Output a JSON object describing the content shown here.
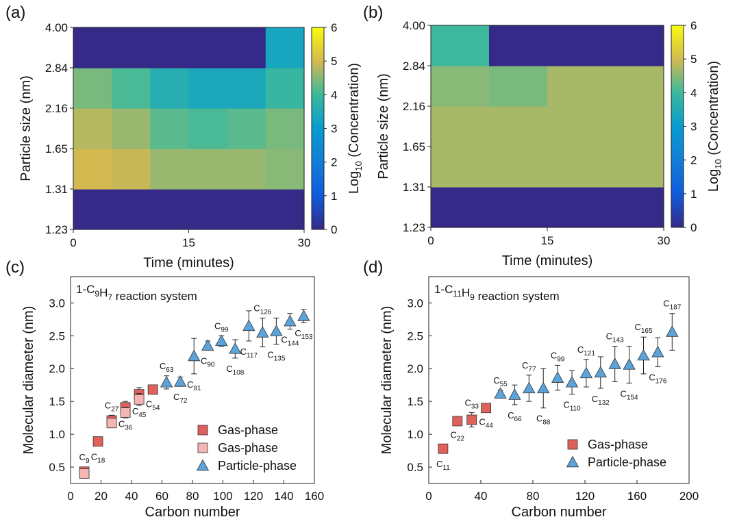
{
  "figure": {
    "panels": [
      "(a)",
      "(b)",
      "(c)",
      "(d)"
    ]
  },
  "chart_data": [
    {
      "panel": "(a)",
      "type": "heatmap",
      "xlabel": "Time (minutes)",
      "ylabel": "Particle size (nm)",
      "colorbar_label": "Log10 (Concentration)",
      "colorbar_ticks": [
        0,
        1,
        2,
        3,
        4,
        5,
        6
      ],
      "colorbar_range": [
        0,
        6
      ],
      "colormap": "parula",
      "x_ticks": [
        "0",
        "15",
        "30"
      ],
      "x_range": [
        0,
        30
      ],
      "y_ticks": [
        "1.23",
        "1.31",
        "1.65",
        "2.16",
        "2.84",
        "4.00"
      ],
      "time_bins": [
        0,
        5,
        10,
        15,
        20,
        25,
        30
      ],
      "size_bins": [
        1.23,
        1.31,
        1.65,
        2.16,
        2.84,
        4.0
      ],
      "values": [
        [
          0.0,
          0.0,
          0.0,
          0.0,
          0.0,
          0.0
        ],
        [
          5.0,
          4.9,
          4.6,
          4.6,
          4.6,
          4.5
        ],
        [
          4.8,
          4.6,
          4.2,
          4.1,
          4.2,
          4.4
        ],
        [
          4.4,
          4.1,
          3.6,
          3.4,
          3.4,
          3.9
        ],
        [
          0.0,
          0.0,
          0.0,
          0.0,
          0.0,
          3.3
        ]
      ]
    },
    {
      "panel": "(b)",
      "type": "heatmap",
      "xlabel": "Time (minutes)",
      "ylabel": "Particle size (nm)",
      "colorbar_label": "Log10 (Concentration)",
      "colorbar_ticks": [
        0,
        1,
        2,
        3,
        4,
        5,
        6
      ],
      "colorbar_range": [
        0,
        6
      ],
      "colormap": "parula",
      "x_ticks": [
        "0",
        "15",
        "30"
      ],
      "x_range": [
        0,
        30
      ],
      "y_ticks": [
        "1.23",
        "1.31",
        "1.65",
        "2.16",
        "2.84",
        "4.00"
      ],
      "time_bins": [
        0,
        7.5,
        15,
        22.5,
        30
      ],
      "size_bins": [
        1.23,
        1.31,
        1.65,
        2.16,
        2.84,
        4.0
      ],
      "values": [
        [
          0.0,
          0.0,
          0.0,
          0.0
        ],
        [
          4.7,
          4.7,
          4.7,
          4.7
        ],
        [
          4.7,
          4.7,
          4.7,
          4.7
        ],
        [
          4.5,
          4.4,
          4.7,
          4.7
        ],
        [
          4.0,
          0.0,
          0.0,
          0.0
        ]
      ]
    },
    {
      "panel": "(c)",
      "type": "scatter",
      "annotation": "1-C9H7 reaction system",
      "xlabel": "Carbon number",
      "ylabel": "Molecular diameter (nm)",
      "xlim": [
        0,
        160
      ],
      "ylim": [
        0.25,
        3.4
      ],
      "x_ticks": [
        0,
        20,
        40,
        60,
        80,
        100,
        120,
        140,
        160
      ],
      "y_ticks": [
        0.5,
        1.0,
        1.5,
        2.0,
        2.5,
        3.0
      ],
      "legend_position": "bottom-right",
      "series": [
        {
          "name": "Gas-phase",
          "marker": "square",
          "color": "#e0605c",
          "points": [
            {
              "x": 9,
              "y": 0.43,
              "err": 0.07,
              "label": "C",
              "sub": "9"
            },
            {
              "x": 18,
              "y": 0.89,
              "err": 0.07,
              "label": "C",
              "sub": "18"
            },
            {
              "x": 27,
              "y": 1.21,
              "err": 0.08,
              "label": "C",
              "sub": "27"
            },
            {
              "x": 36,
              "y": 1.41,
              "err": 0.09,
              "label": "C",
              "sub": "36"
            },
            {
              "x": 45,
              "y": 1.61,
              "err": 0.1,
              "label": "C",
              "sub": "45"
            },
            {
              "x": 54,
              "y": 1.68,
              "err": 0.06,
              "label": "C",
              "sub": "54"
            }
          ]
        },
        {
          "name": "Gas-phase",
          "marker": "square",
          "color": "#f4b6b2",
          "points": [
            {
              "x": 9,
              "y": 0.4,
              "err": 0.05
            },
            {
              "x": 27,
              "y": 1.17,
              "err": 0.06
            },
            {
              "x": 36,
              "y": 1.33,
              "err": 0.08
            },
            {
              "x": 45,
              "y": 1.53,
              "err": 0.09
            }
          ]
        },
        {
          "name": "Particle-phase",
          "marker": "triangle",
          "color": "#5ba3d8",
          "points": [
            {
              "x": 63,
              "y": 1.79,
              "err": 0.1,
              "label": "C",
              "sub": "63"
            },
            {
              "x": 72,
              "y": 1.8,
              "err": 0.07,
              "label": "C",
              "sub": "72"
            },
            {
              "x": 81,
              "y": 2.19,
              "err": 0.27,
              "label": "C",
              "sub": "81"
            },
            {
              "x": 90,
              "y": 2.35,
              "err": 0.07,
              "label": "C",
              "sub": "90"
            },
            {
              "x": 99,
              "y": 2.42,
              "err": 0.08,
              "label": "C",
              "sub": "99"
            },
            {
              "x": 108,
              "y": 2.3,
              "err": 0.14,
              "label": "C",
              "sub": "108"
            },
            {
              "x": 117,
              "y": 2.65,
              "err": 0.23,
              "label": "C",
              "sub": "117"
            },
            {
              "x": 126,
              "y": 2.55,
              "err": 0.22,
              "label": "C",
              "sub": "126"
            },
            {
              "x": 135,
              "y": 2.57,
              "err": 0.2,
              "label": "C",
              "sub": "135"
            },
            {
              "x": 144,
              "y": 2.72,
              "err": 0.12,
              "label": "C",
              "sub": "144"
            },
            {
              "x": 153,
              "y": 2.8,
              "err": 0.1,
              "label": "C",
              "sub": "153"
            }
          ]
        }
      ]
    },
    {
      "panel": "(d)",
      "type": "scatter",
      "annotation": "1-C11H9 reaction system",
      "xlabel": "Carbon number",
      "ylabel": "Molecular diameter (nm)",
      "xlim": [
        0,
        200
      ],
      "ylim": [
        0.25,
        3.4
      ],
      "x_ticks": [
        0,
        40,
        80,
        120,
        160,
        200
      ],
      "y_ticks": [
        0.5,
        1.0,
        1.5,
        2.0,
        2.5,
        3.0
      ],
      "legend_position": "bottom-right",
      "series": [
        {
          "name": "Gas-phase",
          "marker": "square",
          "color": "#e0605c",
          "points": [
            {
              "x": 11,
              "y": 0.78,
              "err": 0.07,
              "label": "C",
              "sub": "11"
            },
            {
              "x": 22,
              "y": 1.2,
              "err": 0.05,
              "label": "C",
              "sub": "22"
            },
            {
              "x": 33,
              "y": 1.22,
              "err": 0.11,
              "label": "C",
              "sub": "33"
            },
            {
              "x": 44,
              "y": 1.4,
              "err": 0.05,
              "label": "C",
              "sub": "44"
            }
          ]
        },
        {
          "name": "Particle-phase",
          "marker": "triangle",
          "color": "#5ba3d8",
          "points": [
            {
              "x": 55,
              "y": 1.62,
              "err": 0.05,
              "label": "C",
              "sub": "55"
            },
            {
              "x": 66,
              "y": 1.6,
              "err": 0.15,
              "label": "C",
              "sub": "66"
            },
            {
              "x": 77,
              "y": 1.7,
              "err": 0.2,
              "label": "C",
              "sub": "77"
            },
            {
              "x": 88,
              "y": 1.7,
              "err": 0.3,
              "label": "C",
              "sub": "88"
            },
            {
              "x": 99,
              "y": 1.86,
              "err": 0.19,
              "label": "C",
              "sub": "99"
            },
            {
              "x": 110,
              "y": 1.79,
              "err": 0.18,
              "label": "C",
              "sub": "110"
            },
            {
              "x": 121,
              "y": 1.93,
              "err": 0.21,
              "label": "C",
              "sub": "121"
            },
            {
              "x": 132,
              "y": 1.94,
              "err": 0.24,
              "label": "C",
              "sub": "132"
            },
            {
              "x": 143,
              "y": 2.07,
              "err": 0.27,
              "label": "C",
              "sub": "143"
            },
            {
              "x": 154,
              "y": 2.06,
              "err": 0.28,
              "label": "C",
              "sub": "154"
            },
            {
              "x": 165,
              "y": 2.2,
              "err": 0.28,
              "label": "C",
              "sub": "165"
            },
            {
              "x": 176,
              "y": 2.25,
              "err": 0.22,
              "label": "C",
              "sub": "176"
            },
            {
              "x": 187,
              "y": 2.56,
              "err": 0.28,
              "label": "C",
              "sub": "187"
            }
          ]
        }
      ]
    }
  ]
}
